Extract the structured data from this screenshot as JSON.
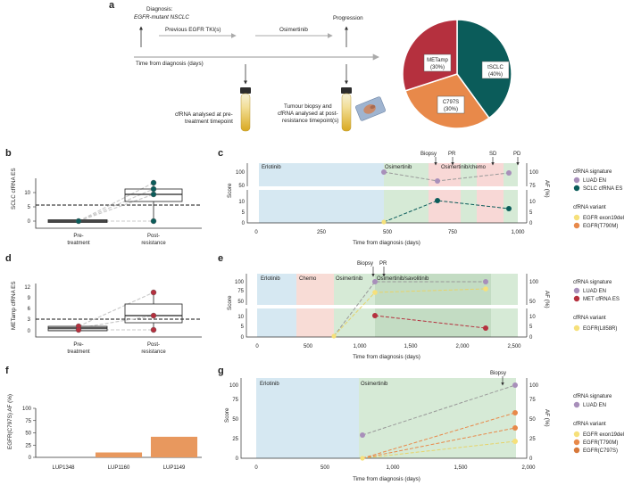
{
  "panel_a": {
    "letter": "a",
    "diagnosis_line1": "Diagnosis:",
    "diagnosis_line2": "EGFR-mutant NSCLC",
    "previous_tki": "Previous EGFR TKI(s)",
    "osimertinib": "Osimertinib",
    "progression": "Progression",
    "timeline_label": "Time from diagnosis (days)",
    "cfrna_pre_line1": "cfRNA analysed at pre-",
    "cfrna_pre_line2": "treatment timepoint",
    "biopsy_line1": "Tumour biopsy and",
    "biopsy_line2": "cfRNA analysed at post-",
    "biopsy_line3": "resistance timepoint(s)",
    "pie": {
      "slices": [
        {
          "label": "tSCLC",
          "pct": "(40%)",
          "value": 40,
          "color": "#0b5c5a"
        },
        {
          "label": "C797S",
          "pct": "(30%)",
          "value": 30,
          "color": "#e8894a"
        },
        {
          "label": "METamp",
          "pct": "(30%)",
          "value": 30,
          "color": "#b5303e"
        }
      ]
    }
  },
  "panel_b": {
    "letter": "b",
    "ylabel": "SCLC cfRNA ES",
    "yticks": [
      "0",
      "5",
      "10"
    ],
    "xlabels": [
      [
        "Pre-",
        "treatment"
      ],
      [
        "Post-",
        "resistance"
      ]
    ]
  },
  "panel_c": {
    "letter": "c",
    "ylabel": "Score",
    "ylabel_right": "AF (%)",
    "xlabel": "Time from diagnosis (days)",
    "xticks": [
      "0",
      "250",
      "500",
      "750",
      "1,000"
    ],
    "ticks_top_left": [
      "100",
      "50"
    ],
    "ticks_top_right": [
      "100",
      "75"
    ],
    "ticks_bottom_left": [
      "10",
      "5",
      "0"
    ],
    "ticks_bottom_right": [
      "10",
      "5",
      "0"
    ],
    "regions": [
      "Erlotinib",
      "Osimertinib",
      "Osimertinib/chemo"
    ],
    "events": [
      "Biopsy",
      "PR",
      "SD",
      "PD"
    ]
  },
  "panel_d": {
    "letter": "d",
    "ylabel": "METamp cfRNA ES",
    "yticks": [
      "0",
      "3",
      "6",
      "9",
      "12"
    ],
    "xlabels": [
      [
        "Pre-",
        "treatment"
      ],
      [
        "Post-",
        "resistance"
      ]
    ]
  },
  "panel_e": {
    "letter": "e",
    "ylabel": "Score",
    "ylabel_right": "AF (%)",
    "xlabel": "Time from diagnosis (days)",
    "xticks": [
      "0",
      "500",
      "1,000",
      "1,500",
      "2,000",
      "2,500"
    ],
    "ticks_top_left": [
      "100",
      "75",
      "50"
    ],
    "ticks_top_right": [
      "100",
      "50"
    ],
    "ticks_bottom_left": [
      "10",
      "5",
      "0"
    ],
    "ticks_bottom_right": [
      "10",
      "5",
      "0"
    ],
    "regions": [
      "Erlotinib",
      "Chemo",
      "Osimertinib",
      "Osimertinib/savolitinib"
    ],
    "events": [
      "Biopsy",
      "PR"
    ]
  },
  "panel_f": {
    "letter": "f",
    "ylabel": "EGFR(C797S) AF (%)",
    "yticks": [
      "0",
      "25",
      "50",
      "75",
      "100"
    ],
    "categories": [
      "LUP1348",
      "LUP1160",
      "LUP1149"
    ],
    "values": [
      0,
      10,
      42
    ]
  },
  "panel_g": {
    "letter": "g",
    "ylabel": "Score",
    "ylabel_right": "AF (%)",
    "xlabel": "Time from diagnosis (days)",
    "xticks": [
      "0",
      "500",
      "1,000",
      "1,500",
      "2,000"
    ],
    "yticks_left": [
      "0",
      "25",
      "50",
      "75",
      "100"
    ],
    "yticks_right": [
      "0",
      "25",
      "50",
      "75",
      "100"
    ],
    "regions": [
      "Erlotinib",
      "Osimertinib"
    ],
    "events": [
      "Biopsy"
    ]
  },
  "legend_c": {
    "sig_title": "cfRNA signature",
    "sig_items": [
      {
        "label": "LUAD EN",
        "color": "#a88fba"
      },
      {
        "label": "SCLC cfRNA ES",
        "color": "#0b5c5a"
      }
    ],
    "var_title": "cfRNA variant",
    "var_items": [
      {
        "label": "EGFR exon19del",
        "color": "#f6e07a"
      },
      {
        "label": "EGFR(T790M)",
        "color": "#e8894a"
      }
    ]
  },
  "legend_e": {
    "sig_title": "cfRNA signature",
    "sig_items": [
      {
        "label": "LUAD EN",
        "color": "#a88fba"
      },
      {
        "label": "MET cfRNA ES",
        "color": "#b5303e"
      }
    ],
    "var_title": "cfRNA variant",
    "var_items": [
      {
        "label": "EGFR(L858R)",
        "color": "#f6e07a"
      }
    ]
  },
  "legend_g": {
    "sig_title": "cfRNA signature",
    "sig_items": [
      {
        "label": "LUAD EN",
        "color": "#a88fba"
      }
    ],
    "var_title": "cfRNA variant",
    "var_items": [
      {
        "label": "EGFR exon19del",
        "color": "#f6e07a"
      },
      {
        "label": "EGFR(T790M)",
        "color": "#e8894a"
      },
      {
        "label": "EGFR(C797S)",
        "color": "#d7783a"
      }
    ]
  },
  "chart_data": [
    {
      "type": "pie",
      "categories": [
        "tSCLC",
        "C797S",
        "METamp"
      ],
      "values": [
        40,
        30,
        30
      ]
    },
    {
      "type": "bar",
      "ylabel": "EGFR(C797S) AF (%)",
      "categories": [
        "LUP1348",
        "LUP1160",
        "LUP1149"
      ],
      "values": [
        0,
        10,
        42
      ],
      "ylim": [
        0,
        100
      ]
    }
  ]
}
